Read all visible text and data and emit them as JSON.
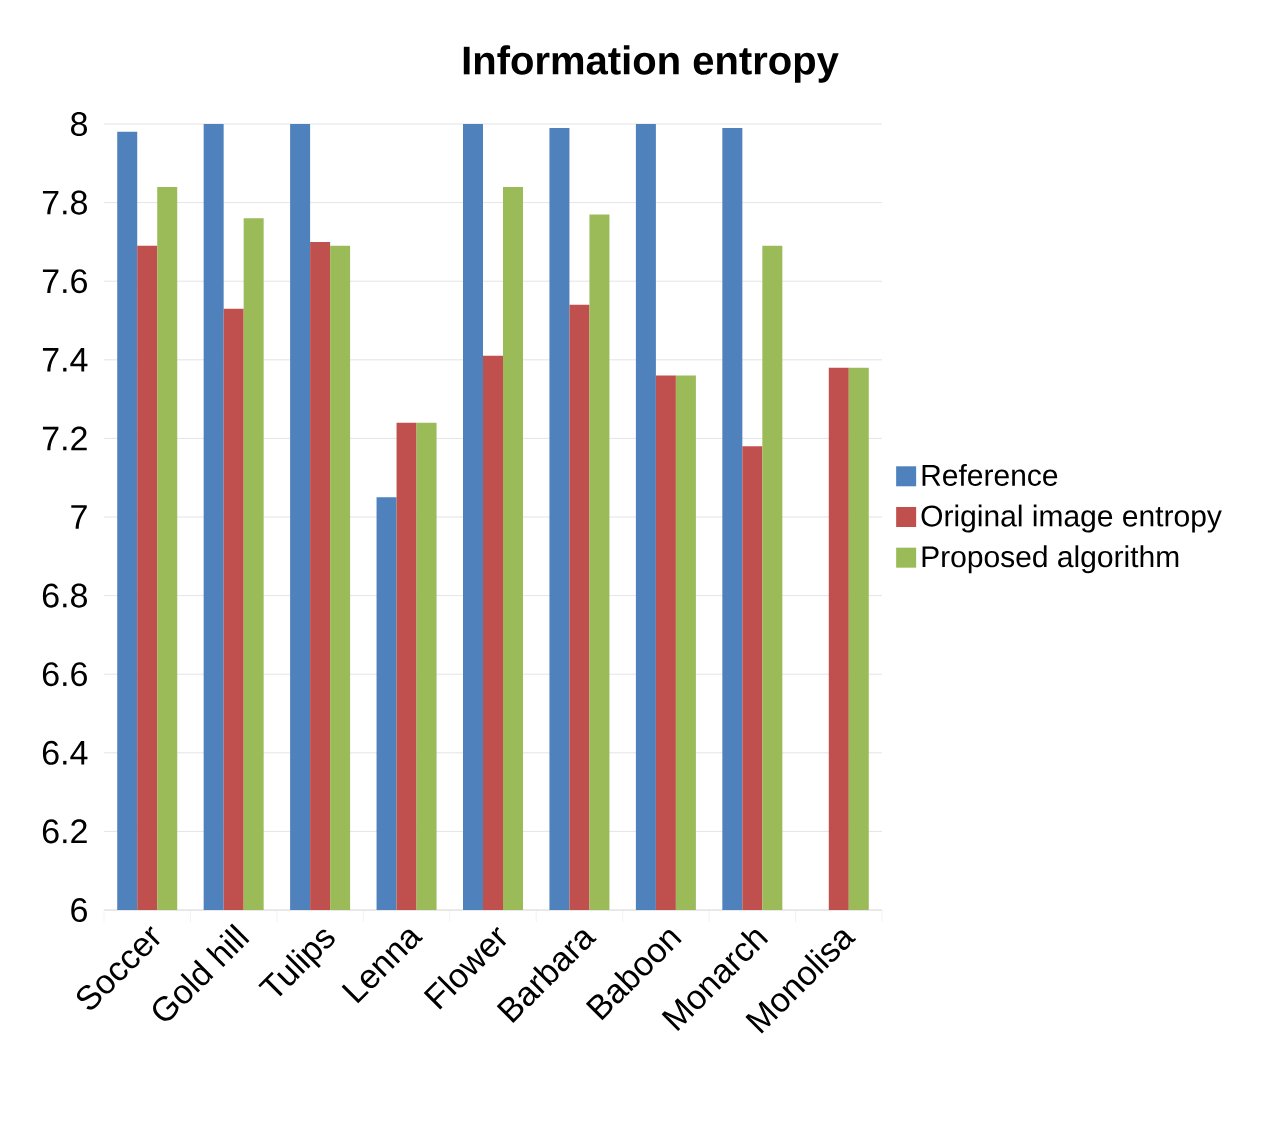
{
  "chart_data": {
    "type": "bar",
    "title": "Information entropy",
    "categories": [
      "Soccer",
      "Gold hill",
      "Tulips",
      "Lenna",
      "Flower",
      "Barbara",
      "Baboon",
      "Monarch",
      "Monolisa"
    ],
    "series": [
      {
        "name": "Reference",
        "color": "#4f81bd",
        "values": [
          7.98,
          8.0,
          8.0,
          7.05,
          8.0,
          7.99,
          8.0,
          7.99,
          null
        ]
      },
      {
        "name": "Original image entropy",
        "color": "#c0504d",
        "values": [
          7.69,
          7.53,
          7.7,
          7.24,
          7.41,
          7.54,
          7.36,
          7.18,
          7.38
        ]
      },
      {
        "name": "Proposed algorithm",
        "color": "#9bbb59",
        "values": [
          7.84,
          7.76,
          7.69,
          7.24,
          7.84,
          7.77,
          7.36,
          7.69,
          7.38
        ]
      }
    ],
    "ylim": [
      6,
      8
    ],
    "yticks": [
      6,
      6.2,
      6.4,
      6.6,
      6.8,
      7,
      7.2,
      7.4,
      7.6,
      7.8,
      8
    ],
    "grid": "y",
    "legend": "right"
  }
}
